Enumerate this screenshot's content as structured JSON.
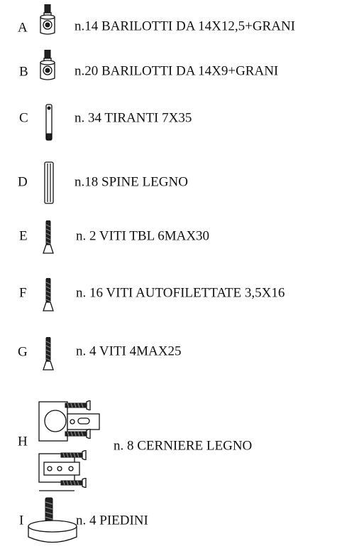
{
  "items": [
    {
      "letter": "A",
      "label": "n.14 BARILOTTI DA 14X12,5+GRANI"
    },
    {
      "letter": "B",
      "label": "n.20  BARILOTTI DA 14X9+GRANI"
    },
    {
      "letter": "C",
      "label": "n. 34 TIRANTI 7X35"
    },
    {
      "letter": "D",
      "label": "n.18 SPINE LEGNO"
    },
    {
      "letter": "E",
      "label": "n. 2 VITI TBL 6MAX30"
    },
    {
      "letter": "F",
      "label": "n. 16 VITI AUTOFILETTATE 3,5X16"
    },
    {
      "letter": "G",
      "label": "n. 4 VITI 4MAX25"
    },
    {
      "letter": "H",
      "label": "n. 8 CERNIERE LEGNO"
    },
    {
      "letter": "I",
      "label": "n. 4 PIEDINI"
    }
  ]
}
